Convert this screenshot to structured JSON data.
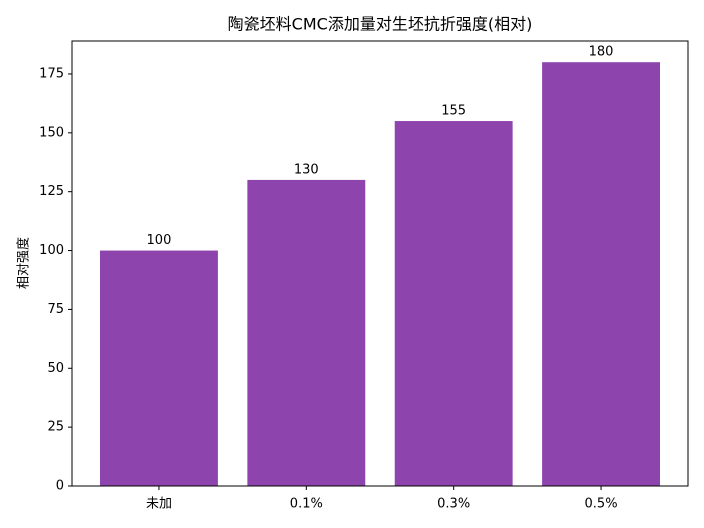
{
  "chart_data": {
    "type": "bar",
    "title": "陶瓷坯料CMC添加量对生坯抗折强度(相对)",
    "y_label": "相对强度",
    "categories": [
      "未加",
      "0.1%",
      "0.3%",
      "0.5%"
    ],
    "values": [
      100,
      130,
      155,
      180
    ],
    "color": "#8e44ad",
    "ylim": [
      0,
      189
    ],
    "yticks": [
      0,
      25,
      50,
      75,
      100,
      125,
      150,
      175
    ],
    "grid": false
  }
}
